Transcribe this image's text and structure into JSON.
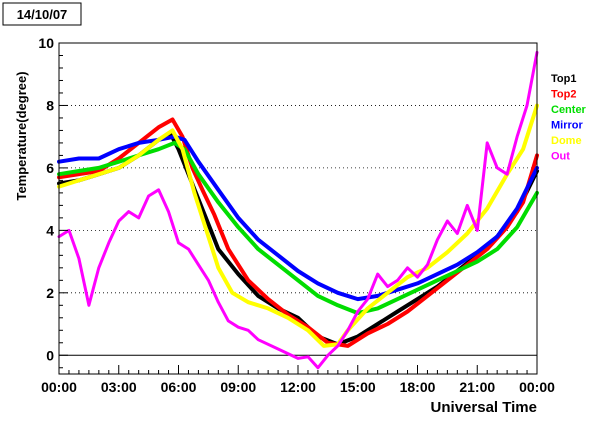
{
  "chart_data": {
    "type": "line",
    "date_label": "14/10/07",
    "xlabel": "Universal Time",
    "ylabel": "Temperature(degree)",
    "x_unit": "hours",
    "xlim": [
      0,
      24
    ],
    "ylim": [
      -0.6,
      10
    ],
    "x_ticks": [
      {
        "x": 0,
        "label": "00:00"
      },
      {
        "x": 3,
        "label": "03:00"
      },
      {
        "x": 6,
        "label": "06:00"
      },
      {
        "x": 9,
        "label": "09:00"
      },
      {
        "x": 12,
        "label": "12:00"
      },
      {
        "x": 15,
        "label": "15:00"
      },
      {
        "x": 18,
        "label": "18:00"
      },
      {
        "x": 21,
        "label": "21:00"
      },
      {
        "x": 24,
        "label": "00:00"
      }
    ],
    "y_ticks": [
      0,
      2,
      4,
      6,
      8,
      10
    ],
    "grid": "dotted horizontal at 2, 4, 6, 8; solid line at 0",
    "legend_position": "right",
    "series": [
      {
        "name": "Top1",
        "color": "#000000",
        "points": [
          [
            0,
            5.5
          ],
          [
            1,
            5.6
          ],
          [
            2,
            5.8
          ],
          [
            3,
            6.0
          ],
          [
            4,
            6.4
          ],
          [
            5,
            6.9
          ],
          [
            5.6,
            7.1
          ],
          [
            6,
            6.6
          ],
          [
            6.5,
            5.8
          ],
          [
            7,
            5.0
          ],
          [
            7.5,
            4.2
          ],
          [
            8,
            3.4
          ],
          [
            9,
            2.6
          ],
          [
            10,
            1.9
          ],
          [
            11,
            1.5
          ],
          [
            12,
            1.2
          ],
          [
            13,
            0.6
          ],
          [
            14,
            0.35
          ],
          [
            15,
            0.6
          ],
          [
            16,
            1.0
          ],
          [
            17,
            1.4
          ],
          [
            18,
            1.8
          ],
          [
            19,
            2.2
          ],
          [
            20,
            2.7
          ],
          [
            21,
            3.2
          ],
          [
            22,
            3.8
          ],
          [
            23,
            4.6
          ],
          [
            24,
            5.9
          ]
        ]
      },
      {
        "name": "Top2",
        "color": "#ff0000",
        "points": [
          [
            0,
            5.7
          ],
          [
            1,
            5.8
          ],
          [
            2,
            5.9
          ],
          [
            3,
            6.3
          ],
          [
            4,
            6.8
          ],
          [
            5,
            7.3
          ],
          [
            5.7,
            7.55
          ],
          [
            6.2,
            7.0
          ],
          [
            6.7,
            6.0
          ],
          [
            7.2,
            5.3
          ],
          [
            7.8,
            4.5
          ],
          [
            8.5,
            3.4
          ],
          [
            9.5,
            2.4
          ],
          [
            10.5,
            1.8
          ],
          [
            11.5,
            1.3
          ],
          [
            12.5,
            0.9
          ],
          [
            13.5,
            0.4
          ],
          [
            14.5,
            0.3
          ],
          [
            15.5,
            0.7
          ],
          [
            16.5,
            1.0
          ],
          [
            17.5,
            1.4
          ],
          [
            18.5,
            1.9
          ],
          [
            19.5,
            2.4
          ],
          [
            20.5,
            2.9
          ],
          [
            21.5,
            3.4
          ],
          [
            22.5,
            4.1
          ],
          [
            23.3,
            4.9
          ],
          [
            24,
            6.4
          ]
        ]
      },
      {
        "name": "Center",
        "color": "#00dd00",
        "points": [
          [
            0,
            5.8
          ],
          [
            1,
            5.9
          ],
          [
            2,
            6.0
          ],
          [
            3,
            6.2
          ],
          [
            4,
            6.4
          ],
          [
            5,
            6.6
          ],
          [
            5.8,
            6.8
          ],
          [
            6.3,
            6.6
          ],
          [
            7,
            5.8
          ],
          [
            8,
            4.9
          ],
          [
            9,
            4.1
          ],
          [
            10,
            3.4
          ],
          [
            11,
            2.9
          ],
          [
            12,
            2.4
          ],
          [
            13,
            1.9
          ],
          [
            14,
            1.6
          ],
          [
            15,
            1.35
          ],
          [
            16,
            1.5
          ],
          [
            17,
            1.8
          ],
          [
            18,
            2.1
          ],
          [
            19,
            2.4
          ],
          [
            20,
            2.7
          ],
          [
            21,
            3.0
          ],
          [
            22,
            3.4
          ],
          [
            23,
            4.1
          ],
          [
            24,
            5.2
          ]
        ]
      },
      {
        "name": "Mirror",
        "color": "#0000ff",
        "points": [
          [
            0,
            6.2
          ],
          [
            1,
            6.3
          ],
          [
            2,
            6.3
          ],
          [
            3,
            6.6
          ],
          [
            4,
            6.8
          ],
          [
            5,
            6.9
          ],
          [
            5.8,
            7.0
          ],
          [
            6.3,
            6.9
          ],
          [
            7,
            6.2
          ],
          [
            8,
            5.3
          ],
          [
            9,
            4.4
          ],
          [
            10,
            3.7
          ],
          [
            11,
            3.2
          ],
          [
            12,
            2.7
          ],
          [
            13,
            2.3
          ],
          [
            14,
            2.0
          ],
          [
            15,
            1.8
          ],
          [
            16,
            1.9
          ],
          [
            17,
            2.1
          ],
          [
            18,
            2.3
          ],
          [
            19,
            2.6
          ],
          [
            20,
            2.9
          ],
          [
            21,
            3.3
          ],
          [
            22,
            3.8
          ],
          [
            23,
            4.7
          ],
          [
            24,
            6.0
          ]
        ]
      },
      {
        "name": "Dome",
        "color": "#ffff00",
        "points": [
          [
            0,
            5.4
          ],
          [
            1,
            5.6
          ],
          [
            2,
            5.8
          ],
          [
            3,
            6.0
          ],
          [
            4,
            6.4
          ],
          [
            5,
            6.9
          ],
          [
            5.7,
            7.2
          ],
          [
            6.2,
            6.6
          ],
          [
            6.8,
            5.2
          ],
          [
            7.5,
            3.8
          ],
          [
            8,
            2.8
          ],
          [
            8.7,
            2.0
          ],
          [
            9.5,
            1.7
          ],
          [
            10.5,
            1.5
          ],
          [
            11.5,
            1.2
          ],
          [
            12.5,
            0.8
          ],
          [
            13.3,
            0.3
          ],
          [
            14,
            0.35
          ],
          [
            14.5,
            0.8
          ],
          [
            15.5,
            1.5
          ],
          [
            16.5,
            2.0
          ],
          [
            17.5,
            2.5
          ],
          [
            18.5,
            2.8
          ],
          [
            19.5,
            3.3
          ],
          [
            20.5,
            3.9
          ],
          [
            21.5,
            4.7
          ],
          [
            22.5,
            5.8
          ],
          [
            23.3,
            6.6
          ],
          [
            24,
            8.0
          ]
        ]
      },
      {
        "name": "Out",
        "color": "#ff00ff",
        "points": [
          [
            0,
            3.8
          ],
          [
            0.5,
            4.0
          ],
          [
            1,
            3.1
          ],
          [
            1.5,
            1.6
          ],
          [
            2,
            2.8
          ],
          [
            2.5,
            3.6
          ],
          [
            3,
            4.3
          ],
          [
            3.5,
            4.6
          ],
          [
            4,
            4.4
          ],
          [
            4.5,
            5.1
          ],
          [
            5,
            5.3
          ],
          [
            5.5,
            4.6
          ],
          [
            6,
            3.6
          ],
          [
            6.5,
            3.4
          ],
          [
            7,
            2.9
          ],
          [
            7.5,
            2.4
          ],
          [
            8,
            1.7
          ],
          [
            8.5,
            1.1
          ],
          [
            9,
            0.9
          ],
          [
            9.5,
            0.8
          ],
          [
            10,
            0.5
          ],
          [
            11,
            0.2
          ],
          [
            12,
            -0.1
          ],
          [
            12.5,
            -0.05
          ],
          [
            13,
            -0.4
          ],
          [
            13.5,
            0.0
          ],
          [
            14,
            0.3
          ],
          [
            14.5,
            0.8
          ],
          [
            15,
            1.4
          ],
          [
            15.5,
            1.8
          ],
          [
            16,
            2.6
          ],
          [
            16.5,
            2.2
          ],
          [
            17,
            2.4
          ],
          [
            17.5,
            2.8
          ],
          [
            18,
            2.5
          ],
          [
            18.5,
            2.9
          ],
          [
            19,
            3.7
          ],
          [
            19.5,
            4.3
          ],
          [
            20,
            3.9
          ],
          [
            20.5,
            4.8
          ],
          [
            21,
            4.0
          ],
          [
            21.5,
            6.8
          ],
          [
            22,
            6.0
          ],
          [
            22.5,
            5.8
          ],
          [
            23,
            7.0
          ],
          [
            23.5,
            8.0
          ],
          [
            24,
            9.7
          ]
        ]
      }
    ]
  }
}
